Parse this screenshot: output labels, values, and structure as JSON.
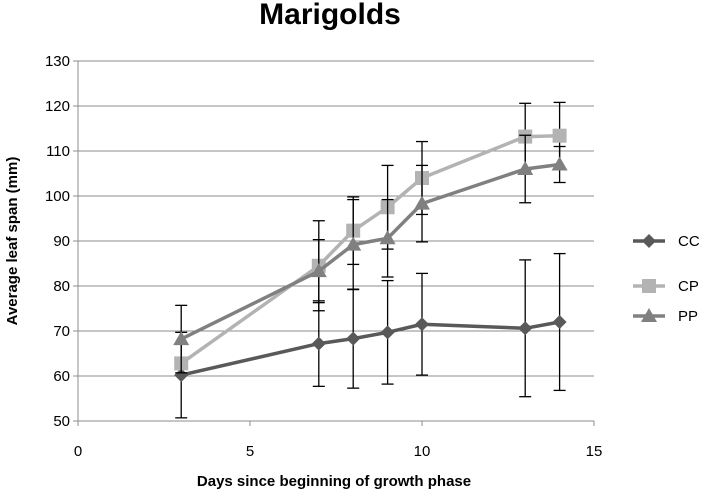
{
  "chart_data": {
    "type": "scatter",
    "title": "Marigolds",
    "xlabel": "Days since beginning of growth phase",
    "ylabel": "Average leaf span (mm)",
    "xlim": [
      0,
      15
    ],
    "ylim": [
      50,
      130
    ],
    "x_ticks": [
      "0",
      "5",
      "10",
      "15"
    ],
    "y_ticks": [
      "50",
      "60",
      "70",
      "80",
      "90",
      "100",
      "110",
      "120",
      "130"
    ],
    "grid": "horizontal",
    "legend_position": "right",
    "series": [
      {
        "name": "CC",
        "color": "#595959",
        "marker": "diamond",
        "points": [
          {
            "x": 3,
            "y": 60.2,
            "err": 9.5
          },
          {
            "x": 7,
            "y": 67.2,
            "err": 9.5
          },
          {
            "x": 8,
            "y": 68.3,
            "err": 11.0
          },
          {
            "x": 9,
            "y": 69.7,
            "err": 11.5
          },
          {
            "x": 10,
            "y": 71.5,
            "err": 11.3
          },
          {
            "x": 13,
            "y": 70.6,
            "err": 15.2
          },
          {
            "x": 14,
            "y": 72.0,
            "err": 15.2
          }
        ]
      },
      {
        "name": "CP",
        "color": "#b3b3b3",
        "marker": "square",
        "points": [
          {
            "x": 3,
            "y": 62.8,
            "err": 0
          },
          {
            "x": 7,
            "y": 84.5,
            "err": 10.0
          },
          {
            "x": 8,
            "y": 92.3,
            "err": 7.5
          },
          {
            "x": 9,
            "y": 97.5,
            "err": 9.3
          },
          {
            "x": 10,
            "y": 104.0,
            "err": 8.1
          },
          {
            "x": 13,
            "y": 113.2,
            "err": 7.4
          },
          {
            "x": 14,
            "y": 113.4,
            "err": 7.4
          }
        ]
      },
      {
        "name": "PP",
        "color": "#808080",
        "marker": "triangle",
        "points": [
          {
            "x": 3,
            "y": 68.2,
            "err": 7.5
          },
          {
            "x": 7,
            "y": 83.3,
            "err": 7.0
          },
          {
            "x": 8,
            "y": 89.2,
            "err": 10.0
          },
          {
            "x": 9,
            "y": 90.6,
            "err": 8.6
          },
          {
            "x": 10,
            "y": 98.3,
            "err": 8.5
          },
          {
            "x": 13,
            "y": 106.0,
            "err": 7.5
          },
          {
            "x": 14,
            "y": 107.0,
            "err": 4.0
          }
        ]
      }
    ]
  }
}
